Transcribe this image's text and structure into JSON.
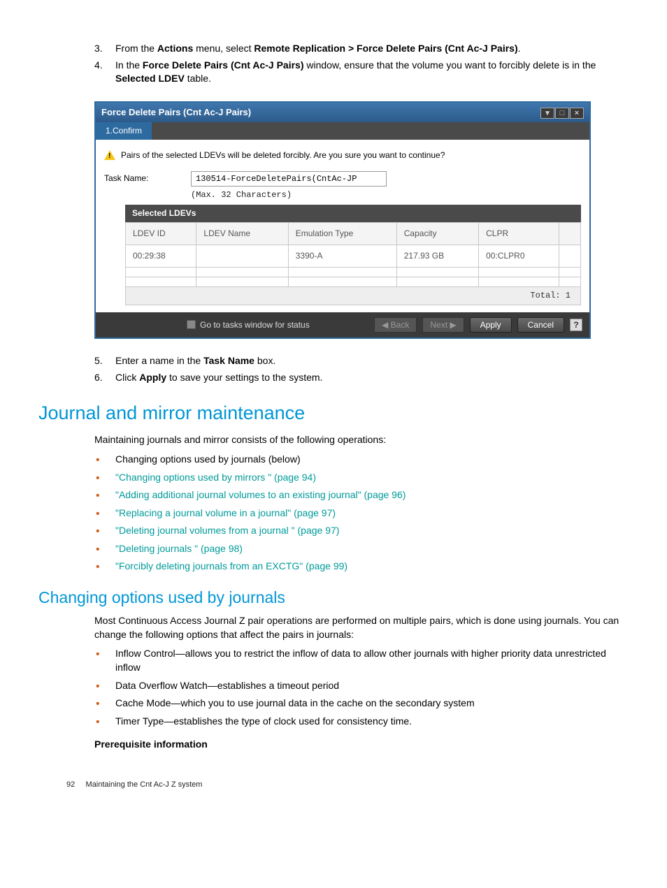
{
  "steps_a": [
    {
      "n": "3.",
      "pre": "From the ",
      "b1": "Actions",
      "mid": " menu, select ",
      "b2": "Remote Replication > Force Delete Pairs (Cnt Ac-J Pairs)",
      "post": "."
    },
    {
      "n": "4.",
      "pre": "In the ",
      "b1": "Force Delete Pairs (Cnt Ac-J Pairs)",
      "mid": " window, ensure that the volume you want to forcibly delete is in the ",
      "b2": "Selected LDEV",
      "post": " table."
    }
  ],
  "dialog": {
    "title": "Force Delete Pairs (Cnt Ac-J Pairs)",
    "tab": "1.Confirm",
    "warning": "Pairs of the selected LDEVs will be deleted forcibly. Are you sure you want to continue?",
    "task_label": "Task Name:",
    "task_value": "130514-ForceDeletePairs(CntAc-JP",
    "task_hint": "(Max. 32 Characters)",
    "ldev_header": "Selected LDEVs",
    "columns": [
      "LDEV ID",
      "LDEV Name",
      "Emulation Type",
      "Capacity",
      "CLPR",
      ""
    ],
    "rows": [
      [
        "00:29:38",
        "",
        "3390-A",
        "217.93 GB",
        "00:CLPR0",
        ""
      ]
    ],
    "total_label": "Total:  1",
    "footer_status": "Go to tasks window for status",
    "back": "Back",
    "next": "Next",
    "apply": "Apply",
    "cancel": "Cancel"
  },
  "steps_b": [
    {
      "n": "5.",
      "pre": "Enter a name in the ",
      "b1": "Task Name",
      "post": " box."
    },
    {
      "n": "6.",
      "pre": "Click ",
      "b1": "Apply",
      "post": " to save your settings to the system."
    }
  ],
  "h1": "Journal and mirror maintenance",
  "p1": "Maintaining journals and mirror consists of the following operations:",
  "bullets1": [
    {
      "text": "Changing options used by journals (below)",
      "link": false
    },
    {
      "text": "\"Changing options used by mirrors \" (page 94)",
      "link": true
    },
    {
      "text": "\"Adding additional journal volumes to an existing journal\" (page 96)",
      "link": true
    },
    {
      "text": "\"Replacing a journal volume in a journal\" (page 97)",
      "link": true
    },
    {
      "text": "\"Deleting journal volumes from a journal \" (page 97)",
      "link": true
    },
    {
      "text": "\"Deleting journals \" (page 98)",
      "link": true
    },
    {
      "text": "\"Forcibly deleting journals from an EXCTG\" (page 99)",
      "link": true
    }
  ],
  "h2": "Changing options used by journals",
  "p2": "Most Continuous Access Journal Z pair operations are performed on multiple pairs, which is done using journals. You can change the following options that affect the pairs in journals:",
  "bullets2": [
    "Inflow Control—allows you to restrict the inflow of data to allow other journals with higher priority data unrestricted inflow",
    "Data Overflow Watch—establishes a timeout period",
    "Cache Mode—which you to use journal data in the cache on the secondary system",
    "Timer Type—establishes the type of clock used for consistency time."
  ],
  "prereq": "Prerequisite information",
  "footer": {
    "page": "92",
    "title": "Maintaining the Cnt Ac-J Z system"
  }
}
